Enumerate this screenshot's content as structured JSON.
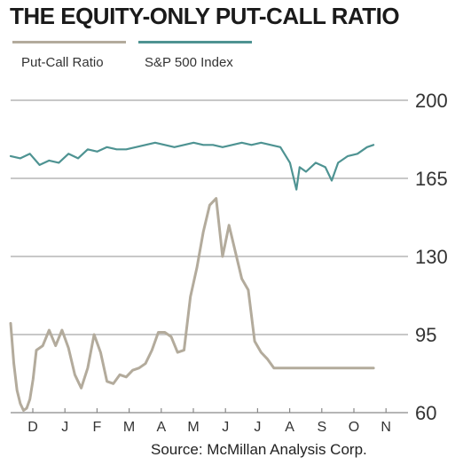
{
  "chart_data": {
    "type": "line",
    "title": "THE EQUITY-ONLY PUT-CALL RATIO",
    "source": "Source: McMillan Analysis Corp.",
    "ylim": [
      60,
      200
    ],
    "yticks": [
      60,
      95,
      130,
      165,
      200
    ],
    "ytick_labels": [
      "60",
      "95",
      "130",
      "165",
      "200"
    ],
    "grid": true,
    "legend_position": "top-left",
    "x_labels": [
      "D",
      "J",
      "F",
      "M",
      "A",
      "M",
      "J",
      "J",
      "A",
      "S",
      "O",
      "N"
    ],
    "colors": {
      "put_call": "#b3ab9c",
      "sp500": "#4e9392",
      "grid": "#b5b5b5"
    },
    "series": [
      {
        "name": "Put-Call Ratio",
        "color": "#b3ab9c",
        "x": [
          0.0,
          0.1,
          0.2,
          0.3,
          0.4,
          0.5,
          0.6,
          0.7,
          0.8,
          0.9,
          1.0,
          1.2,
          1.4,
          1.6,
          1.8,
          2.0,
          2.2,
          2.4,
          2.6,
          2.8,
          3.0,
          3.2,
          3.4,
          3.6,
          3.8,
          4.0,
          4.2,
          4.4,
          4.6,
          4.8,
          5.0,
          5.2,
          5.4,
          5.6,
          5.8,
          6.0,
          6.2,
          6.4,
          6.6,
          6.8,
          7.0,
          7.2,
          7.4,
          7.6,
          7.8,
          8.0,
          8.2,
          8.4,
          8.6,
          8.8,
          9.0,
          9.2,
          9.4,
          9.6,
          9.8,
          10.0,
          10.2,
          10.4,
          10.6,
          10.8,
          11.0,
          11.2,
          11.3
        ],
        "values": [
          100,
          82,
          70,
          64,
          61,
          62,
          66,
          75,
          88,
          89,
          90,
          97,
          90,
          97,
          89,
          77,
          71,
          80,
          95,
          87,
          74,
          73,
          77,
          76,
          79,
          80,
          82,
          88,
          96,
          96,
          94,
          87,
          88,
          112,
          125,
          141,
          153,
          156,
          130,
          144,
          132,
          120,
          115,
          92,
          87,
          84,
          80,
          80,
          80,
          80,
          80,
          80,
          80,
          80,
          80,
          80,
          80,
          80,
          80,
          80,
          80,
          80,
          80
        ]
      },
      {
        "name": "S&P 500 Index",
        "color": "#4e9392",
        "x": [
          0.0,
          0.3,
          0.6,
          0.9,
          1.2,
          1.5,
          1.8,
          2.1,
          2.4,
          2.7,
          3.0,
          3.3,
          3.6,
          3.9,
          4.2,
          4.5,
          4.8,
          5.1,
          5.4,
          5.7,
          6.0,
          6.3,
          6.6,
          6.9,
          7.2,
          7.5,
          7.8,
          8.1,
          8.4,
          8.7,
          8.9,
          9.0,
          9.2,
          9.5,
          9.8,
          10.0,
          10.2,
          10.5,
          10.8,
          11.1,
          11.3
        ],
        "values": [
          175,
          174,
          176,
          171,
          173,
          172,
          176,
          174,
          178,
          177,
          179,
          178,
          178,
          179,
          180,
          181,
          180,
          179,
          180,
          181,
          180,
          180,
          179,
          180,
          181,
          180,
          181,
          180,
          179,
          172,
          160,
          170,
          168,
          172,
          170,
          164,
          172,
          175,
          176,
          179,
          180
        ]
      }
    ]
  }
}
